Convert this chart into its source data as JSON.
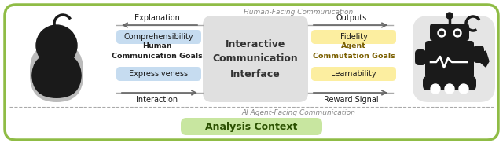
{
  "fig_width": 6.4,
  "fig_height": 1.82,
  "dpi": 100,
  "bg_color": "#ffffff",
  "outer_border_color": "#8fbc45",
  "human_facing_label": "Human-Facing Communication",
  "agent_facing_label": "AI Agent-Facing Communication",
  "center_box_color": "#e0e0e0",
  "center_box_text": "Interactive\nCommunication\nInterface",
  "explanation_label": "Explanation",
  "interaction_label": "Interaction",
  "outputs_label": "Outputs",
  "reward_label": "Reward Signal",
  "comprehensibility_label": "Comprehensibility",
  "expressiveness_label": "Expressiveness",
  "human_goals_label": "Human\nCommunication Goals",
  "left_pill_color": "#c6dcf0",
  "fidelity_label": "Fidelity",
  "learnability_label": "Learnability",
  "agent_goals_label": "Agent\nCommutation Goals",
  "right_pill_color": "#fceea0",
  "analysis_label": "Analysis Context",
  "analysis_box_color": "#c8e6a0",
  "text_color_dark": "#1a1a1a",
  "text_color_goals_left": "#222222",
  "text_color_goals_right": "#7a5f00",
  "arrow_color": "#666666",
  "line_color": "#aaaaaa",
  "sep_color": "#aaaaaa"
}
